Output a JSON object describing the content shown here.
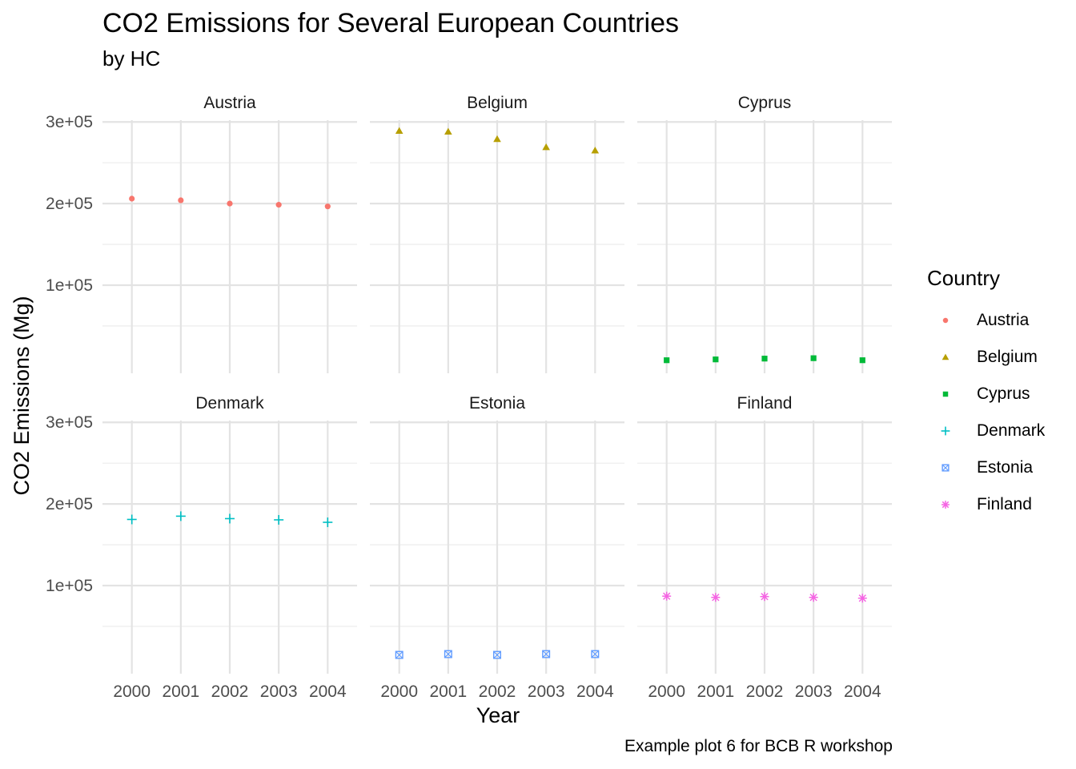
{
  "title": "CO2 Emissions for Several European Countries",
  "subtitle": "by HC",
  "caption": "Example plot 6 for BCB R workshop",
  "chart_data": {
    "type": "scatter",
    "faceted": true,
    "facet_layout": "3 columns x 2 rows",
    "xlabel": "Year",
    "ylabel": "CO2 Emissions (Mg)",
    "x": [
      2000,
      2001,
      2002,
      2003,
      2004
    ],
    "x_tick_labels": [
      "2000",
      "2001",
      "2002",
      "2003",
      "2004"
    ],
    "y_ticks": [
      100000,
      200000,
      300000
    ],
    "y_tick_labels": [
      "1e+05",
      "2e+05",
      "3e+05"
    ],
    "ylim": [
      -8000,
      312000
    ],
    "grid": true,
    "legend_title": "Country",
    "legend_position": "right",
    "series": [
      {
        "name": "Austria",
        "color": "#F8766D",
        "shape": "circle",
        "values": [
          206000,
          204000,
          200000,
          198500,
          196500
        ]
      },
      {
        "name": "Belgium",
        "color": "#B79F00",
        "shape": "triangle",
        "values": [
          289000,
          288000,
          279000,
          269000,
          265000
        ]
      },
      {
        "name": "Cyprus",
        "color": "#00BA38",
        "shape": "square",
        "values": [
          8000,
          9000,
          10000,
          10500,
          8000
        ]
      },
      {
        "name": "Denmark",
        "color": "#00BFC4",
        "shape": "plus",
        "values": [
          181000,
          185000,
          182000,
          180500,
          177500
        ]
      },
      {
        "name": "Estonia",
        "color": "#619CFF",
        "shape": "boxed-x",
        "values": [
          15000,
          16000,
          15000,
          16000,
          16000
        ]
      },
      {
        "name": "Finland",
        "color": "#F564E3",
        "shape": "asterisk",
        "values": [
          87000,
          85500,
          86500,
          85500,
          84500
        ]
      }
    ]
  }
}
